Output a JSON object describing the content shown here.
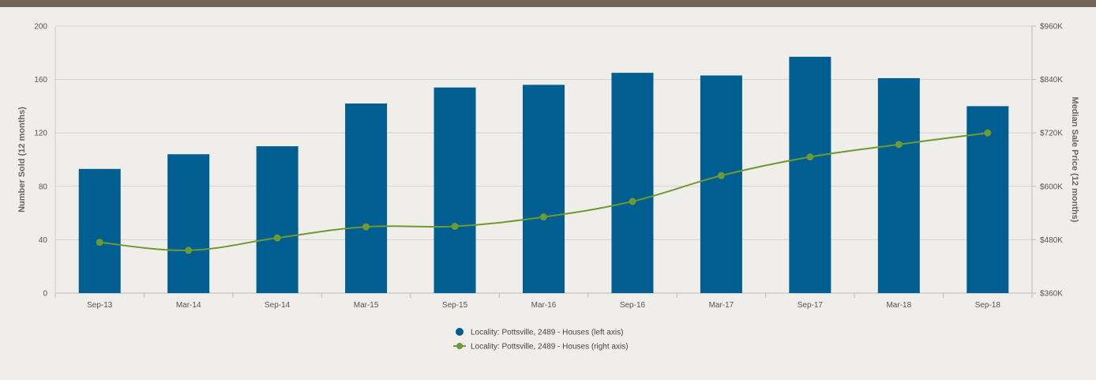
{
  "chart_data": {
    "type": "bar",
    "categories": [
      "Sep-13",
      "Mar-14",
      "Sep-14",
      "Mar-15",
      "Sep-15",
      "Mar-16",
      "Sep-16",
      "Mar-17",
      "Sep-17",
      "Mar-18",
      "Sep-18"
    ],
    "series": [
      {
        "name": "Locality: Pottsville, 2489 - Houses (left axis)",
        "type": "bar",
        "axis": "left",
        "color": "#015e91",
        "values": [
          93,
          104,
          110,
          142,
          154,
          156,
          165,
          163,
          177,
          161,
          140
        ]
      },
      {
        "name": "Locality: Pottsville, 2489 - Houses (right axis)",
        "type": "line",
        "axis": "right",
        "color": "#6e9a33",
        "values": [
          474000,
          456000,
          484000,
          509000,
          510000,
          531000,
          566000,
          624000,
          666000,
          694000,
          720000
        ]
      }
    ],
    "ylabel": "Number Sold (12 months)",
    "ylabel_right": "Median Sale Price (12 months)",
    "ylim": [
      0,
      200
    ],
    "ylim_right": [
      360000,
      960000
    ],
    "yticks": [
      "0",
      "40",
      "80",
      "120",
      "160",
      "200"
    ],
    "yticks_right": [
      "$360K",
      "$480K",
      "$600K",
      "$720K",
      "$840K",
      "$960K"
    ],
    "grid": true,
    "legend_position": "bottom-center"
  }
}
